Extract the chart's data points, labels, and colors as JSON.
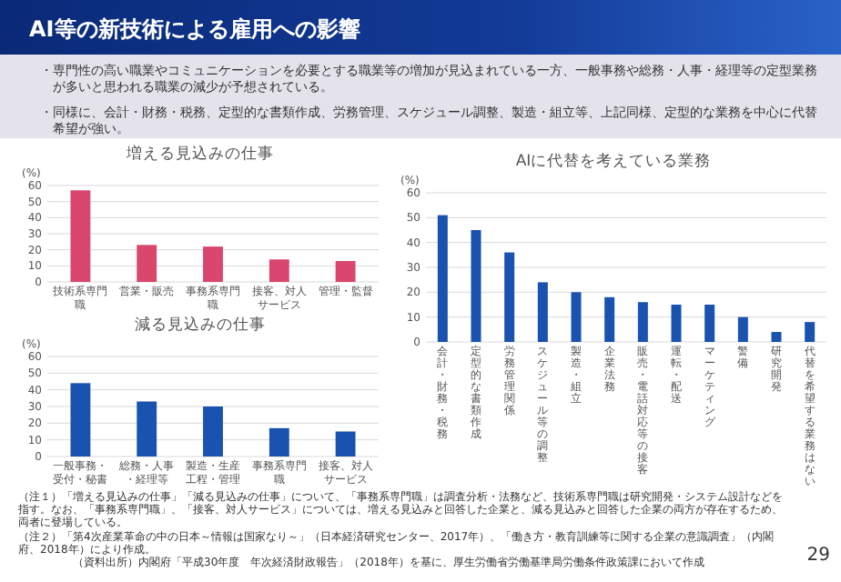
{
  "chart_data": [
    {
      "type": "other",
      "title": "AI等の新技術による雇用への影響",
      "annotations": [
        "・専門性の高い職業やコミュニケーションを必要とする職業等の増加が見込まれている一方、一般事務や総務・人事・経理等の定型業務が多いと思われる職業の減少が予想されている。",
        "・同様に、会計・財務・税務、定型的な書類作成、労務管理、スケジュール調整、製造・組立等、上記同様、定型的な業務を中心に代替希望が強い。"
      ]
    },
    {
      "type": "bar",
      "title": "増える見込みの仕事",
      "ylabel": "(%)",
      "categories": [
        "技術系専門職",
        "営業・販売",
        "事務系専門職",
        "接客、対人サービス",
        "管理・監督"
      ],
      "values": [
        57,
        23,
        22,
        14,
        13
      ],
      "color": "#d9466e",
      "ylim": [
        0,
        60
      ],
      "yticks": [
        0,
        10,
        20,
        30,
        40,
        50,
        60
      ],
      "grid": "y"
    },
    {
      "type": "bar",
      "title": "減る見込みの仕事",
      "ylabel": "(%)",
      "categories": [
        "一般事務・受付・秘書",
        "総務・人事・経理等",
        "製造・生産工程・管理",
        "事務系専門職",
        "接客、対人サービス"
      ],
      "values": [
        44,
        33,
        30,
        17,
        15
      ],
      "color": "#1a52b0",
      "ylim": [
        0,
        60
      ],
      "yticks": [
        0,
        10,
        20,
        30,
        40,
        50,
        60
      ],
      "grid": "y"
    },
    {
      "type": "bar",
      "title": "AIに代替を考えている業務",
      "ylabel": "(%)",
      "categories": [
        "会計・財務・税務",
        "定型的な書類作成",
        "労務管理関係",
        "スケジュール等の調整",
        "製造・組立",
        "企業法務",
        "販売・電話対応等の接客",
        "運転・配送",
        "マーケティング",
        "警備",
        "研究開発",
        "代替を希望する業務はない"
      ],
      "values": [
        51,
        45,
        36,
        24,
        20,
        18,
        16,
        15,
        15,
        10,
        4,
        8
      ],
      "color": "#1a52b0",
      "ylim": [
        0,
        60
      ],
      "yticks": [
        0,
        10,
        20,
        30,
        40,
        50,
        60
      ],
      "grid": "y"
    },
    {
      "type": "other",
      "annotations": [
        "（注１）「増える見込みの仕事」「減る見込みの仕事」について、「事務系専門職」は調査分析・法務など、技術系専門職は研究開発・システム設計などを指す。なお、「事務系専門職」、「接客、対人サービス」については、増える見込みと回答した企業と、減る見込みと回答した企業の両方が存在するため、両者に登場している。",
        "（注２）「第4次産業革命の中の日本～情報は国家なり～」（日本経済研究センター、2017年）、「働き方・教育訓練等に関する企業の意識調査」（内閣府、2018年）により作成。",
        "（資料出所）内閣府「平成30年度　年次経済財政報告」（2018年）を基に、厚生労働省労働基準局労働条件政策課において作成",
        "29"
      ]
    }
  ]
}
